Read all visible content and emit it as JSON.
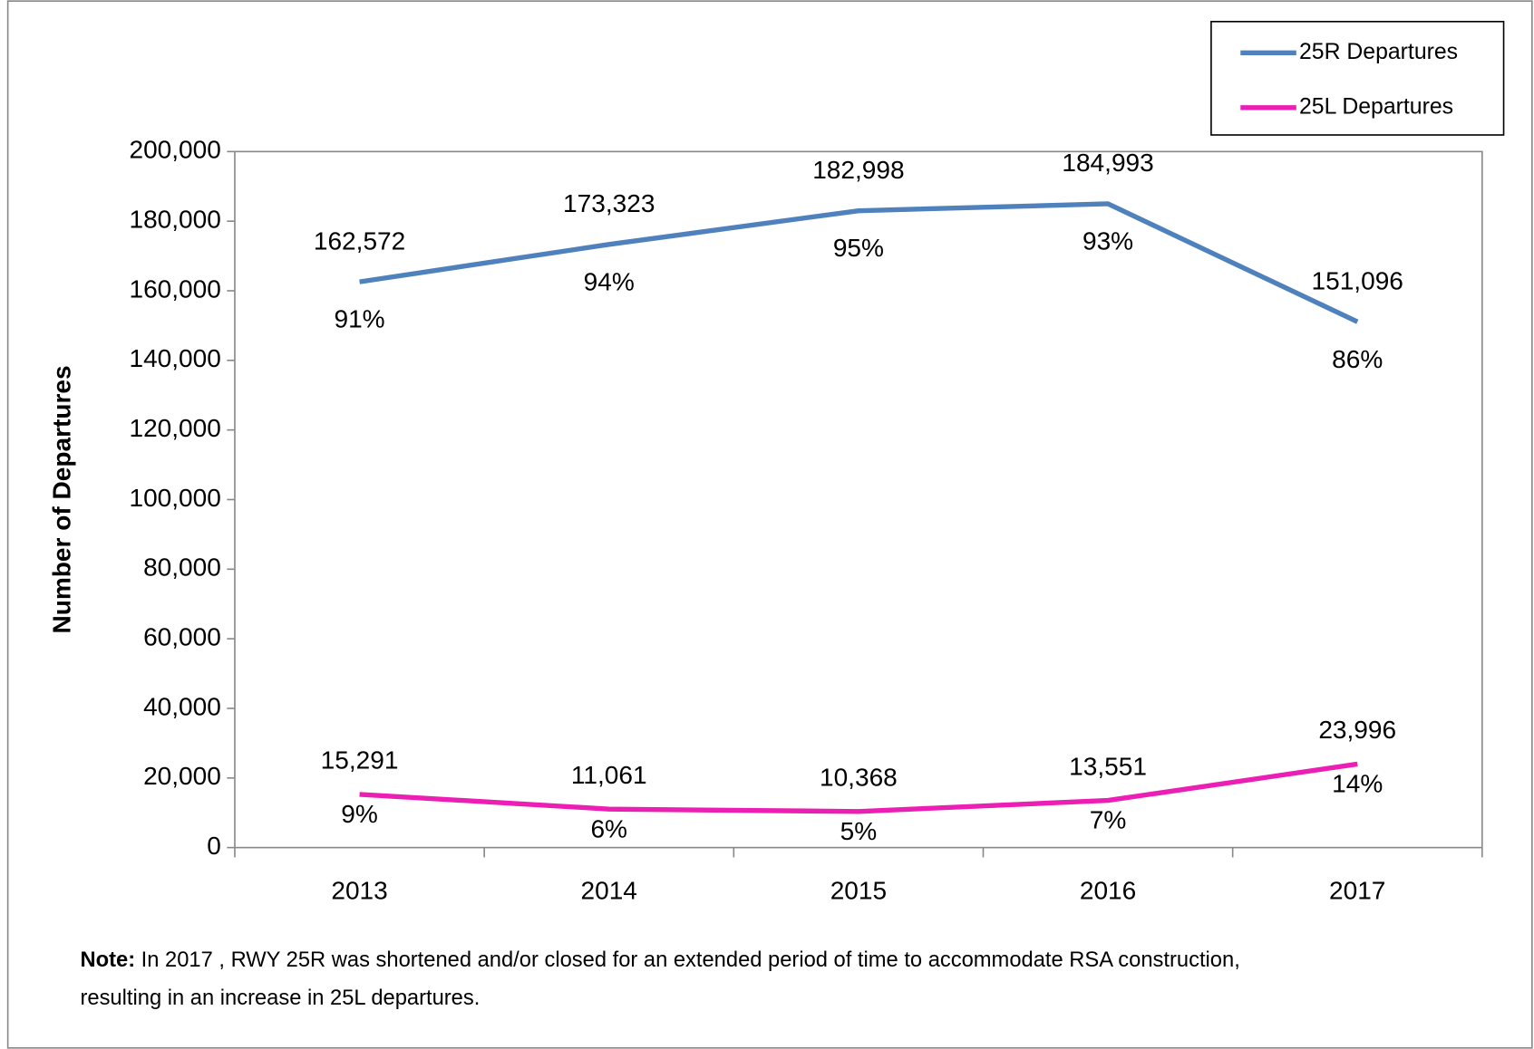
{
  "chart_data": {
    "type": "line",
    "y_label": "Number of Departures",
    "categories": [
      "2013",
      "2014",
      "2015",
      "2016",
      "2017"
    ],
    "series": [
      {
        "name": "25R Departures",
        "color": "#4f81bd",
        "values": [
          162572,
          173323,
          182998,
          184993,
          151096
        ],
        "value_labels": [
          "162,572",
          "173,323",
          "182,998",
          "184,993",
          "151,096"
        ],
        "share_labels": [
          "91%",
          "94%",
          "95%",
          "93%",
          "86%"
        ]
      },
      {
        "name": "25L Departures",
        "color": "#ec1fb4",
        "values": [
          15291,
          11061,
          10368,
          13551,
          23996
        ],
        "value_labels": [
          "15,291",
          "11,061",
          "10,368",
          "13,551",
          "23,996"
        ],
        "share_labels": [
          "9%",
          "6%",
          "5%",
          "7%",
          "14%"
        ]
      }
    ],
    "ylim": [
      0,
      200000
    ],
    "yticks": [
      0,
      {
        "value": 20000,
        "label": "20,000"
      },
      {
        "value": 40000,
        "label": "40,000"
      },
      {
        "value": 60000,
        "label": "60,000"
      },
      {
        "value": 80000,
        "label": "80,000"
      },
      {
        "value": 100000,
        "label": "100,000"
      },
      {
        "value": 120000,
        "label": "120,000"
      },
      {
        "value": 140000,
        "label": "140,000"
      },
      {
        "value": 160000,
        "label": "160,000"
      },
      {
        "value": 180000,
        "label": "180,000"
      },
      {
        "value": 200000,
        "label": "200,000"
      }
    ],
    "legend": "top-right",
    "note": {
      "label": "Note:",
      "text": " In 2017 , RWY 25R was shortened and/or closed for an extended period of time to accommodate RSA construction,",
      "text2": "resulting in an increase in 25L departures."
    }
  }
}
